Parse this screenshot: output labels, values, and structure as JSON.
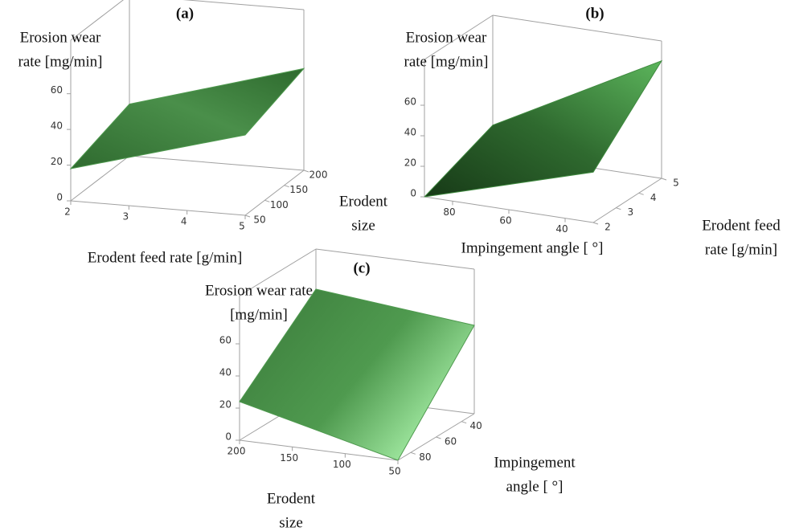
{
  "chart_data": [
    {
      "type": "surface",
      "title": "(a)",
      "x_label": [
        "Erodent feed rate [g/min]"
      ],
      "y_label": [
        "Erodent",
        "size"
      ],
      "z_label": [
        "Erosion wear",
        "rate [mg/min]"
      ],
      "xlim": [
        2,
        5
      ],
      "xticks": [
        2,
        3,
        4,
        5
      ],
      "ylim": [
        50,
        200
      ],
      "yticks": [
        50,
        100,
        150,
        200
      ],
      "zlim": [
        0,
        90
      ],
      "zticks": [
        0,
        20,
        40,
        60
      ],
      "x": [
        2,
        5
      ],
      "y": [
        50,
        200
      ],
      "z": [
        [
          18,
          45
        ],
        [
          29,
          57
        ]
      ],
      "color": "#4f9a4f"
    },
    {
      "type": "surface",
      "title": "(b)",
      "x_label": [
        "Impingement angle [ °]"
      ],
      "y_label": [
        "Erodent feed",
        "rate [g/min]"
      ],
      "z_label": [
        "Erosion wear",
        "rate [mg/min]"
      ],
      "xlim": [
        90,
        30
      ],
      "xticks": [
        80,
        60,
        40
      ],
      "ylim": [
        2,
        5
      ],
      "yticks": [
        2,
        3,
        4,
        5
      ],
      "zlim": [
        0,
        90
      ],
      "zticks": [
        0,
        20,
        40,
        60
      ],
      "x": [
        90,
        30
      ],
      "y": [
        2,
        5
      ],
      "z": [
        [
          0,
          33
        ],
        [
          18,
          77
        ]
      ],
      "color": "#3f8a3f"
    },
    {
      "type": "surface",
      "title": "(c)",
      "x_label": [
        "Erodent",
        "size"
      ],
      "y_label": [
        "Impingement",
        "angle [ °]"
      ],
      "z_label": [
        "Erosion wear rate",
        "[mg/min]"
      ],
      "xlim": [
        200,
        50
      ],
      "xticks": [
        200,
        150,
        100,
        50
      ],
      "ylim": [
        90,
        30
      ],
      "yticks": [
        80,
        60,
        40
      ],
      "zlim": [
        0,
        90
      ],
      "zticks": [
        0,
        20,
        40,
        60
      ],
      "x": [
        200,
        50
      ],
      "y": [
        90,
        30
      ],
      "z": [
        [
          24,
          0
        ],
        [
          65,
          55
        ]
      ],
      "color": "#4f9a4f"
    }
  ]
}
